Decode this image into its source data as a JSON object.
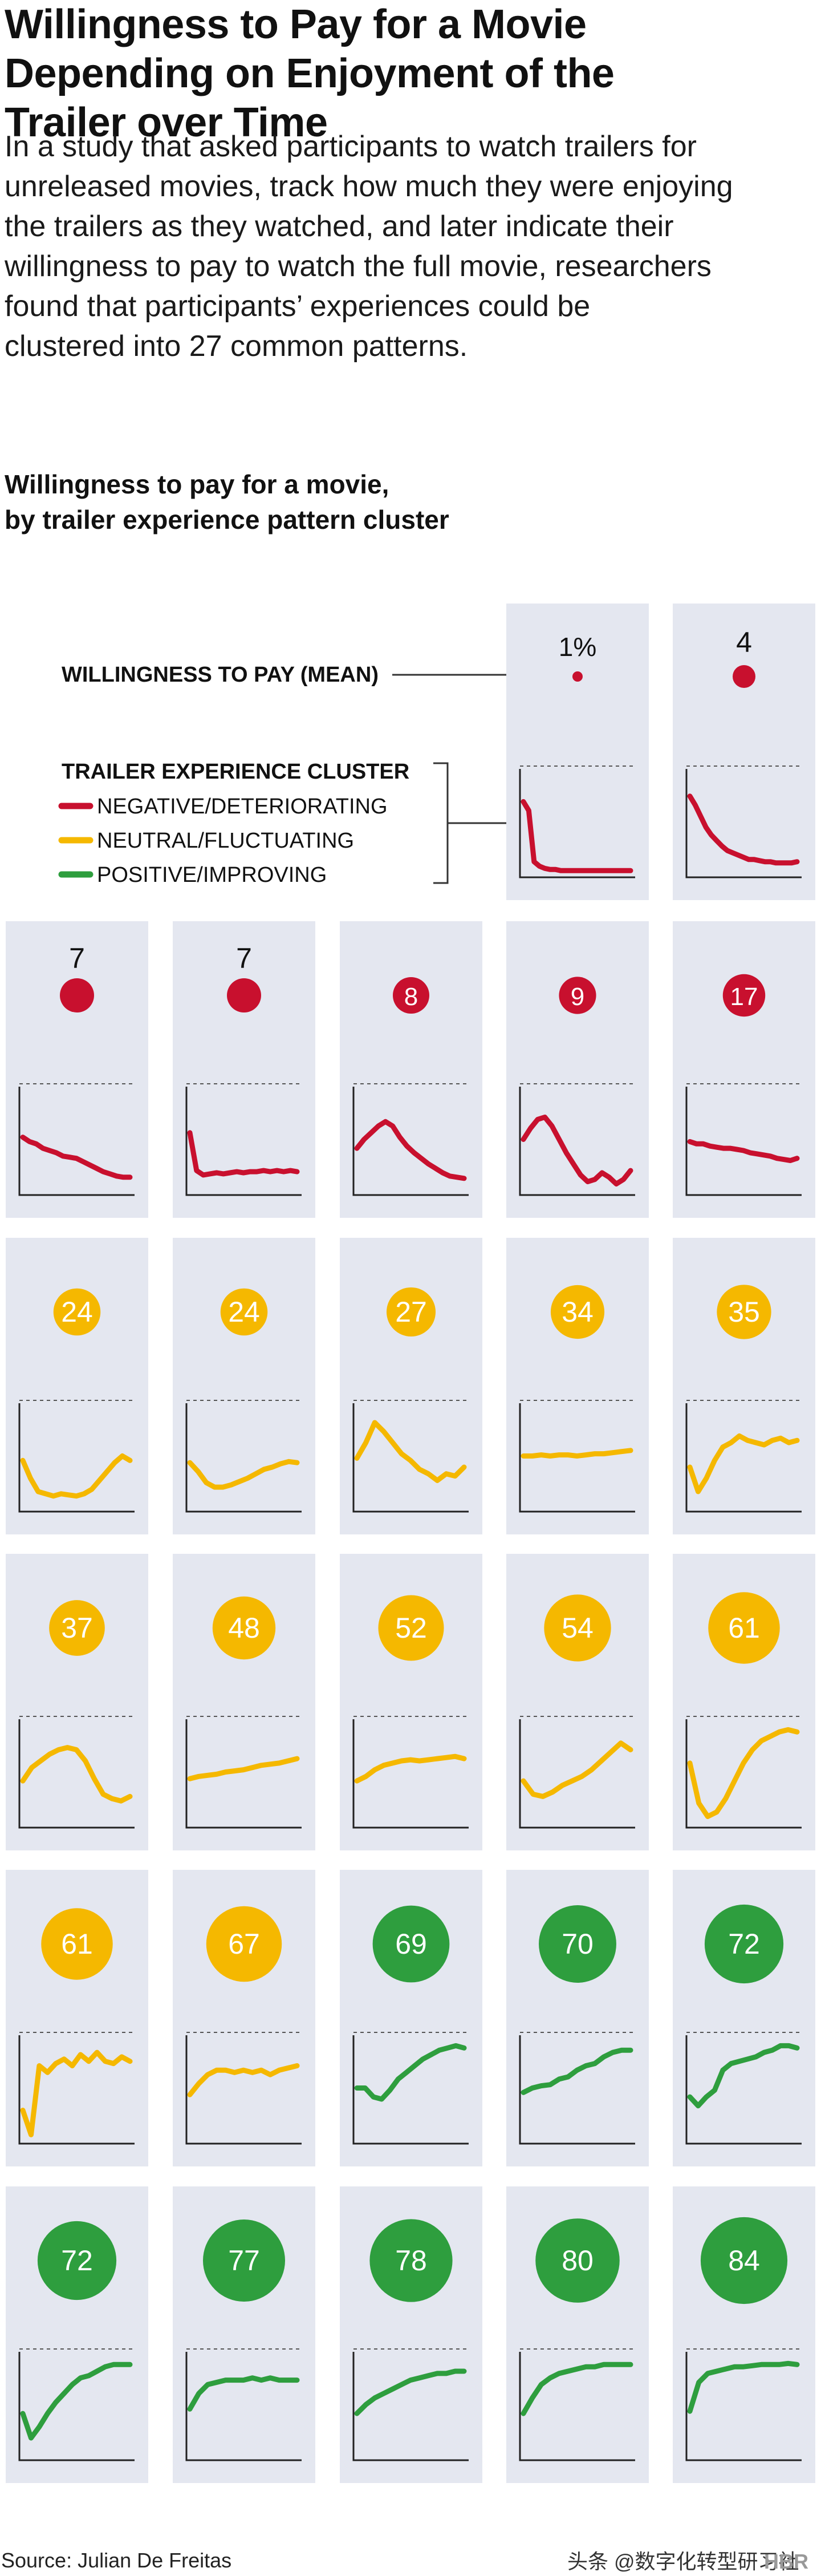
{
  "header": {
    "title_line1": "Willingness to Pay for a Movie",
    "title_line2": "Depending on Enjoyment of the",
    "title_line3": "Trailer over Time",
    "dek_lines": [
      "In a study that asked participants to watch trailers for",
      "unreleased movies, track how much they were enjoying",
      "the trailers as they watched, and later indicate their",
      "willingness to pay to watch the full movie, researchers",
      "found that participants’ experiences could be",
      "clustered into 27 common patterns."
    ]
  },
  "chart_title_line1": "Willingness to pay for a movie,",
  "chart_title_line2": "by trailer experience pattern cluster",
  "legend": {
    "wtp_label": "WILLINGNESS TO PAY (MEAN)",
    "cluster_title": "TRAILER EXPERIENCE CLUSTER",
    "items": [
      {
        "label": "NEGATIVE/DETERIORATING",
        "color": "#c8102e"
      },
      {
        "label": "NEUTRAL/FLUCTUATING",
        "color": "#f5b800"
      },
      {
        "label": "POSITIVE/IMPROVING",
        "color": "#2e9e3e"
      }
    ]
  },
  "colors": {
    "panel_bg": "#e4e7f0",
    "negative": "#c8102e",
    "neutral": "#f5b800",
    "positive": "#2e9e3e"
  },
  "chart_data": {
    "type": "line",
    "panels": [
      {
        "wtp": "1%",
        "cluster": "negative",
        "y": [
          0.68,
          0.6,
          0.14,
          0.1,
          0.08,
          0.07,
          0.07,
          0.06,
          0.06,
          0.06,
          0.06,
          0.06,
          0.06,
          0.06,
          0.06,
          0.06,
          0.06,
          0.06,
          0.06,
          0.06,
          0.06
        ]
      },
      {
        "wtp": "4",
        "cluster": "negative",
        "y": [
          0.73,
          0.65,
          0.55,
          0.45,
          0.38,
          0.33,
          0.28,
          0.24,
          0.22,
          0.2,
          0.18,
          0.16,
          0.16,
          0.15,
          0.14,
          0.14,
          0.13,
          0.13,
          0.13,
          0.13,
          0.14
        ]
      },
      {
        "wtp": "7",
        "cluster": "negative",
        "y": [
          0.52,
          0.48,
          0.46,
          0.42,
          0.4,
          0.38,
          0.35,
          0.34,
          0.33,
          0.3,
          0.27,
          0.24,
          0.21,
          0.19,
          0.17,
          0.16,
          0.16
        ]
      },
      {
        "wtp": "7",
        "cluster": "negative",
        "y": [
          0.56,
          0.22,
          0.18,
          0.19,
          0.2,
          0.19,
          0.2,
          0.21,
          0.2,
          0.21,
          0.21,
          0.22,
          0.21,
          0.22,
          0.21,
          0.22,
          0.21
        ]
      },
      {
        "wtp": "8",
        "cluster": "negative",
        "y": [
          0.42,
          0.5,
          0.56,
          0.62,
          0.66,
          0.62,
          0.52,
          0.44,
          0.38,
          0.33,
          0.28,
          0.24,
          0.2,
          0.17,
          0.16,
          0.15
        ]
      },
      {
        "wtp": "9",
        "cluster": "negative",
        "y": [
          0.5,
          0.6,
          0.68,
          0.7,
          0.62,
          0.5,
          0.38,
          0.28,
          0.18,
          0.12,
          0.14,
          0.2,
          0.16,
          0.1,
          0.14,
          0.22
        ]
      },
      {
        "wtp": "17",
        "cluster": "negative",
        "y": [
          0.48,
          0.46,
          0.46,
          0.44,
          0.43,
          0.42,
          0.42,
          0.41,
          0.4,
          0.38,
          0.37,
          0.36,
          0.35,
          0.33,
          0.32,
          0.31,
          0.33
        ]
      },
      {
        "wtp": "24",
        "cluster": "neutral",
        "y": [
          0.46,
          0.3,
          0.18,
          0.16,
          0.14,
          0.16,
          0.15,
          0.14,
          0.16,
          0.2,
          0.28,
          0.36,
          0.44,
          0.5,
          0.46
        ]
      },
      {
        "wtp": "24",
        "cluster": "neutral",
        "y": [
          0.44,
          0.36,
          0.26,
          0.22,
          0.22,
          0.24,
          0.27,
          0.3,
          0.34,
          0.38,
          0.4,
          0.43,
          0.45,
          0.44
        ]
      },
      {
        "wtp": "27",
        "cluster": "neutral",
        "y": [
          0.48,
          0.62,
          0.8,
          0.72,
          0.62,
          0.52,
          0.46,
          0.38,
          0.34,
          0.28,
          0.34,
          0.32,
          0.4
        ]
      },
      {
        "wtp": "34",
        "cluster": "neutral",
        "y": [
          0.5,
          0.5,
          0.51,
          0.5,
          0.51,
          0.51,
          0.5,
          0.51,
          0.52,
          0.52,
          0.53,
          0.54,
          0.55
        ]
      },
      {
        "wtp": "35",
        "cluster": "neutral",
        "y": [
          0.4,
          0.18,
          0.3,
          0.46,
          0.58,
          0.62,
          0.68,
          0.64,
          0.62,
          0.6,
          0.64,
          0.66,
          0.62,
          0.64
        ]
      },
      {
        "wtp": "37",
        "cluster": "neutral",
        "y": [
          0.42,
          0.54,
          0.6,
          0.66,
          0.7,
          0.72,
          0.7,
          0.6,
          0.44,
          0.3,
          0.26,
          0.24,
          0.28
        ]
      },
      {
        "wtp": "48",
        "cluster": "neutral",
        "y": [
          0.44,
          0.46,
          0.47,
          0.48,
          0.5,
          0.51,
          0.52,
          0.54,
          0.56,
          0.57,
          0.58,
          0.6,
          0.62
        ]
      },
      {
        "wtp": "52",
        "cluster": "neutral",
        "y": [
          0.42,
          0.46,
          0.52,
          0.56,
          0.58,
          0.6,
          0.61,
          0.6,
          0.61,
          0.62,
          0.63,
          0.64,
          0.62
        ]
      },
      {
        "wtp": "54",
        "cluster": "neutral",
        "y": [
          0.42,
          0.3,
          0.28,
          0.32,
          0.38,
          0.42,
          0.46,
          0.52,
          0.6,
          0.68,
          0.76,
          0.7
        ]
      },
      {
        "wtp": "61",
        "cluster": "neutral",
        "y": [
          0.58,
          0.22,
          0.1,
          0.14,
          0.26,
          0.42,
          0.58,
          0.7,
          0.78,
          0.82,
          0.86,
          0.88,
          0.86
        ]
      },
      {
        "wtp": "61",
        "cluster": "neutral",
        "y": [
          0.3,
          0.08,
          0.7,
          0.64,
          0.72,
          0.76,
          0.7,
          0.8,
          0.74,
          0.82,
          0.74,
          0.72,
          0.78,
          0.74
        ]
      },
      {
        "wtp": "67",
        "cluster": "neutral",
        "y": [
          0.44,
          0.54,
          0.62,
          0.66,
          0.66,
          0.64,
          0.66,
          0.64,
          0.66,
          0.62,
          0.66,
          0.68,
          0.7
        ]
      },
      {
        "wtp": "69",
        "cluster": "positive",
        "y": [
          0.5,
          0.5,
          0.42,
          0.4,
          0.48,
          0.58,
          0.64,
          0.7,
          0.76,
          0.8,
          0.84,
          0.86,
          0.88,
          0.86
        ]
      },
      {
        "wtp": "70",
        "cluster": "positive",
        "y": [
          0.46,
          0.5,
          0.52,
          0.53,
          0.58,
          0.6,
          0.66,
          0.7,
          0.72,
          0.78,
          0.82,
          0.84,
          0.84
        ]
      },
      {
        "wtp": "72",
        "cluster": "positive",
        "y": [
          0.42,
          0.34,
          0.42,
          0.48,
          0.66,
          0.72,
          0.74,
          0.76,
          0.78,
          0.82,
          0.84,
          0.88,
          0.88,
          0.86
        ]
      },
      {
        "wtp": "72",
        "cluster": "positive",
        "y": [
          0.42,
          0.2,
          0.3,
          0.42,
          0.52,
          0.6,
          0.68,
          0.74,
          0.76,
          0.8,
          0.84,
          0.86,
          0.86,
          0.86
        ]
      },
      {
        "wtp": "77",
        "cluster": "positive",
        "y": [
          0.46,
          0.6,
          0.68,
          0.7,
          0.72,
          0.72,
          0.72,
          0.74,
          0.72,
          0.74,
          0.72,
          0.72,
          0.72
        ]
      },
      {
        "wtp": "78",
        "cluster": "positive",
        "y": [
          0.42,
          0.5,
          0.56,
          0.6,
          0.64,
          0.68,
          0.72,
          0.74,
          0.76,
          0.78,
          0.78,
          0.8,
          0.8
        ]
      },
      {
        "wtp": "80",
        "cluster": "positive",
        "y": [
          0.42,
          0.56,
          0.68,
          0.74,
          0.78,
          0.8,
          0.82,
          0.84,
          0.84,
          0.86,
          0.86,
          0.86,
          0.86
        ]
      },
      {
        "wtp": "84",
        "cluster": "positive",
        "y": [
          0.44,
          0.7,
          0.78,
          0.8,
          0.82,
          0.84,
          0.84,
          0.85,
          0.86,
          0.86,
          0.86,
          0.87,
          0.86
        ]
      }
    ]
  },
  "footer": {
    "source": "Source: Julian De Freitas",
    "watermark": "头条 @数字化转型研习社",
    "logo_text": "HBR"
  }
}
